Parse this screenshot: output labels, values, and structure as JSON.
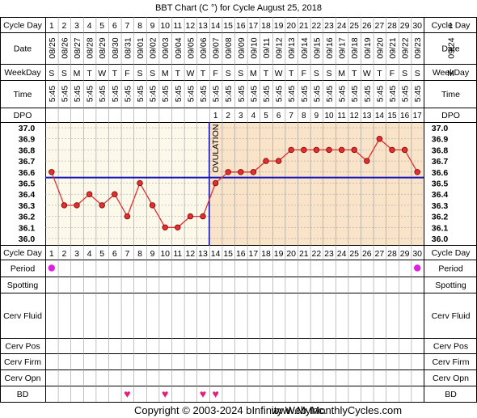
{
  "header": {
    "title": "BBT Chart (C °) for Cycle August 25, 2018"
  },
  "row_labels": {
    "cycle_day": "Cycle Day",
    "date": "Date",
    "weekday": "WeekDay",
    "time": "Time",
    "dpo": "DPO",
    "period": "Period",
    "spotting": "Spotting",
    "cerv_fluid": "Cerv Fluid",
    "cerv_pos": "Cerv Pos",
    "cerv_firm": "Cerv Firm",
    "cerv_opn": "Cerv Opn",
    "bd": "BD"
  },
  "extra_column": {
    "cycle_day": "1",
    "date": "09/24",
    "weekday": "M"
  },
  "ovulation_label": "OVULATION",
  "footer": {
    "copyright": "Copyright © 2003-2024 bInfinity Web Inc.",
    "site": "www.MyMonthlyCycles.com"
  },
  "colors": {
    "pre_ovulation_bg": "#fcf9ea",
    "post_ovulation_bg": "#f9e3c9",
    "line": "#e03030",
    "marker_fill": "#e03030",
    "coverline": "#1818b8",
    "period": "#e020e0",
    "bd_heart": "#e0207a",
    "grid": "#999999"
  },
  "chart_data": {
    "type": "line",
    "title": "BBT Chart (C °) for Cycle August 25, 2018",
    "x_label": "Cycle Day",
    "y_label": "",
    "days": [
      1,
      2,
      3,
      4,
      5,
      6,
      7,
      8,
      9,
      10,
      11,
      12,
      13,
      14,
      15,
      16,
      17,
      18,
      19,
      20,
      21,
      22,
      23,
      24,
      25,
      26,
      27,
      28,
      29,
      30
    ],
    "dates": [
      "08/25",
      "08/26",
      "08/27",
      "08/28",
      "08/29",
      "08/30",
      "08/31",
      "09/01",
      "09/02",
      "09/03",
      "09/04",
      "09/05",
      "09/06",
      "09/07",
      "09/08",
      "09/09",
      "09/10",
      "09/11",
      "09/12",
      "09/13",
      "09/14",
      "09/15",
      "09/16",
      "09/17",
      "09/18",
      "09/19",
      "09/20",
      "09/21",
      "09/22",
      "09/23"
    ],
    "weekdays": [
      "S",
      "S",
      "M",
      "T",
      "W",
      "T",
      "F",
      "S",
      "S",
      "M",
      "T",
      "W",
      "T",
      "F",
      "S",
      "S",
      "M",
      "T",
      "W",
      "T",
      "F",
      "S",
      "S",
      "M",
      "T",
      "W",
      "T",
      "F",
      "S",
      "S"
    ],
    "times": [
      "5:45",
      "5:45",
      "5:45",
      "5:45",
      "5:45",
      "5:45",
      "5:45",
      "5:45",
      "5:45",
      "5:45",
      "5:45",
      "5:45",
      "5:45",
      "5:45",
      "5:45",
      "5:45",
      "5:45",
      "5:45",
      "5:45",
      "5:45",
      "5:45",
      "5:45",
      "5:45",
      "5:45",
      "5:45",
      "5:45",
      "5:45",
      "5:45",
      "5:45",
      "5:45"
    ],
    "dpo": [
      "",
      "",
      "",
      "",
      "",
      "",
      "",
      "",
      "",
      "",
      "",
      "",
      "",
      "1",
      "2",
      "3",
      "4",
      "5",
      "6",
      "7",
      "8",
      "9",
      "10",
      "11",
      "12",
      "13",
      "14",
      "15",
      "16",
      "17"
    ],
    "temperatures": [
      36.6,
      36.3,
      36.3,
      36.4,
      36.3,
      36.4,
      36.2,
      36.5,
      36.3,
      36.1,
      36.1,
      36.2,
      36.2,
      36.5,
      36.6,
      36.6,
      36.6,
      36.7,
      36.7,
      36.8,
      36.8,
      36.8,
      36.8,
      36.8,
      36.8,
      36.7,
      36.9,
      36.8,
      36.8,
      36.6
    ],
    "y_ticks": [
      "37.0",
      "36.9",
      "36.8",
      "36.7",
      "36.6",
      "36.5",
      "36.4",
      "36.3",
      "36.2",
      "36.1",
      "36.0"
    ],
    "ylim": [
      36.0,
      37.0
    ],
    "coverline": 36.55,
    "ovulation_after_day": 13,
    "period_days": [
      1,
      30
    ],
    "bd_days": [
      7,
      10,
      13,
      14
    ],
    "grid": true,
    "legend": "none"
  }
}
